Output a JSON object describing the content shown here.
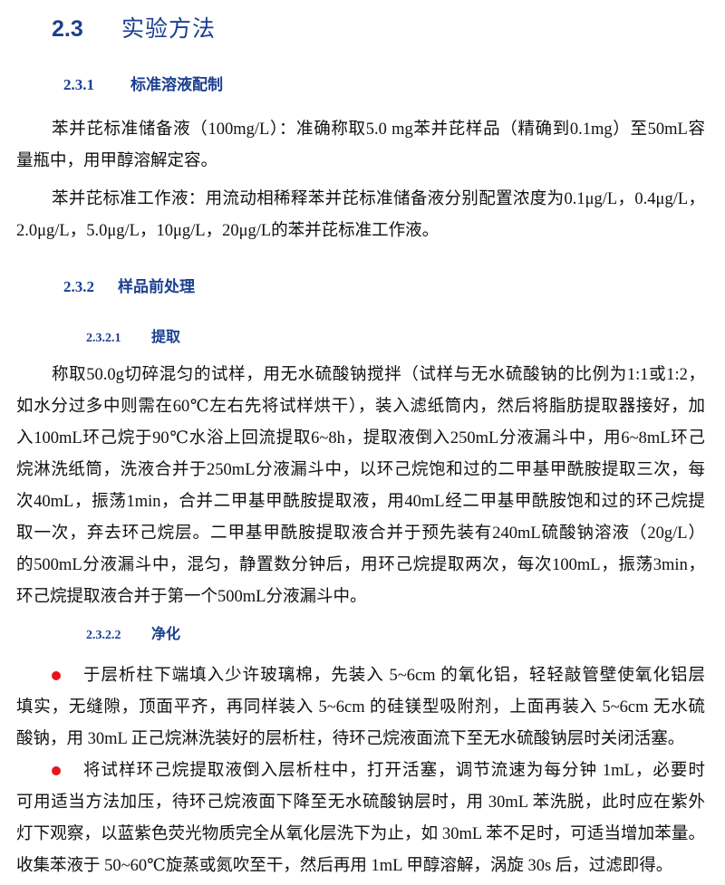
{
  "section": {
    "number": "2.3",
    "title": "实验方法"
  },
  "sub1": {
    "number": "2.3.1",
    "title": "标准溶液配制",
    "paragraphs": [
      [
        "苯并芘标准储备液（100mg/L）：准确称取5.0 mg苯并芘样品（精确到0.1mg）至50mL容",
        "量瓶中，用甲醇溶解定容。"
      ],
      [
        "苯并芘标准工作液：用流动相稀释苯并芘标准储备液分别配置浓度为0.1μg/L，0.4μg/L，",
        "2.0μg/L，5.0μg/L，10μg/L，20μg/L的苯并芘标准工作液。"
      ]
    ]
  },
  "sub2": {
    "number": "2.3.2",
    "title": "样品前处理"
  },
  "sub21": {
    "number": "2.3.2.1",
    "title": "提取",
    "lines": [
      "称取50.0g切碎混匀的试样，用无水硫酸钠搅拌（试样与无水硫酸钠的比例为1:1或1:2，",
      "如水分过多中则需在60℃左右先将试样烘干），装入滤纸筒内，然后将脂肪提取器接好，加",
      "入100mL环己烷于90℃水浴上回流提取6~8h，提取液倒入250mL分液漏斗中，用6~8mL环己",
      "烷淋洗纸筒，洗液合并于250mL分液漏斗中，以环己烷饱和过的二甲基甲酰胺提取三次，每",
      "次40mL，振荡1min，合并二甲基甲酰胺提取液，用40mL经二甲基甲酰胺饱和过的环己烷提",
      "取一次，弃去环己烷层。二甲基甲酰胺提取液合并于预先装有240mL硫酸钠溶液（20g/L）",
      "的500mL分液漏斗中，混匀，静置数分钟后，用环己烷提取两次，每次100mL，振荡3min，",
      "环己烷提取液合并于第一个500mL分液漏斗中。"
    ]
  },
  "sub22": {
    "number": "2.3.2.2",
    "title": "净化",
    "bullet_color": "#e8141b",
    "bullets": [
      [
        "于层析柱下端填入少许玻璃棉，先装入 5~6cm 的氧化铝，轻轻敲管壁使氧化铝层",
        "填实，无缝隙，顶面平齐，再同样装入 5~6cm 的硅镁型吸附剂，上面再装入 5~6cm 无水硫",
        "酸钠，用 30mL 正己烷淋洗装好的层析柱，待环己烷液面流下至无水硫酸钠层时关闭活塞。"
      ],
      [
        "将试样环己烷提取液倒入层析柱中，打开活塞，调节流速为每分钟 1mL，必要时",
        "可用适当方法加压，待环己烷液面下降至无水硫酸钠层时，用 30mL 苯洗脱，此时应在紫外",
        "灯下观察，以蓝紫色荧光物质完全从氧化层洗下为止，如 30mL 苯不足时，可适当增加苯量。",
        "收集苯液于 50~60℃旋蒸或氮吹至干，然后再用 1mL 甲醇溶解，涡旋 30s 后，过滤即得。"
      ]
    ]
  }
}
